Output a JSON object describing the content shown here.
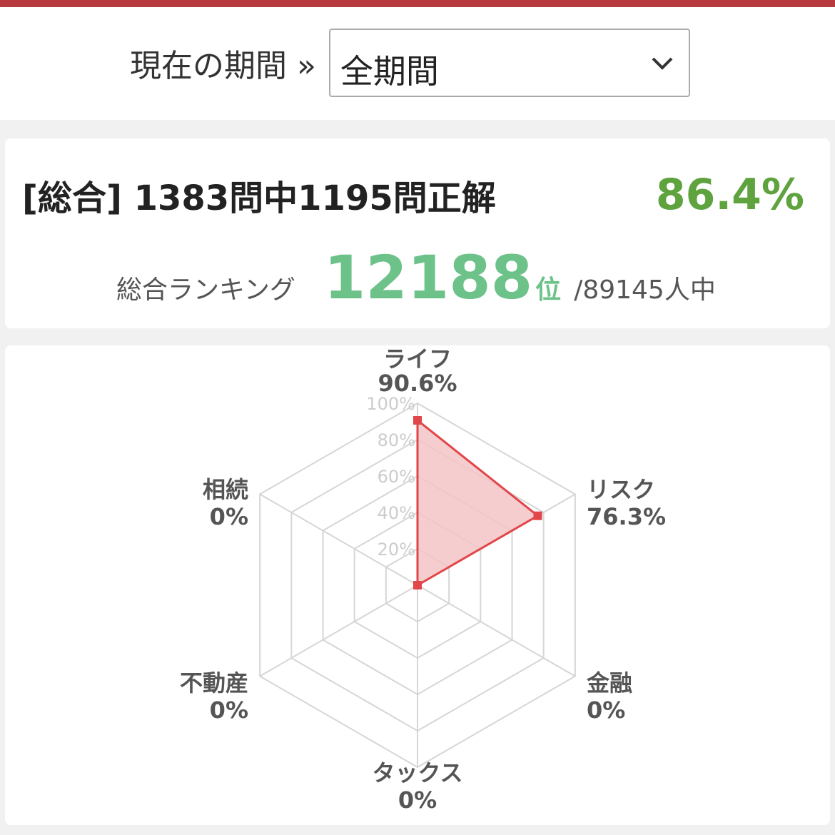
{
  "colors": {
    "topbar": "#b83a3f",
    "score": "#5fa33f",
    "rank": "#6dc28a",
    "series_line": "#e0464a",
    "series_fill": "#f4c4c5",
    "grid": "#d6d6d6",
    "tick": "#cccccc",
    "label": "#555555"
  },
  "period": {
    "label": "現在の期間 »",
    "selected": "全期間",
    "icon": "chevron-down-icon"
  },
  "summary": {
    "title": "[総合] 1383問中1195問正解",
    "percent": "86.4%",
    "rank_label": "総合ランキング",
    "rank": "12188",
    "rank_unit": "位",
    "rank_total": "/89145人中"
  },
  "chart_data": {
    "type": "radar",
    "categories": [
      "ライフ",
      "リスク",
      "金融",
      "タックス",
      "不動産",
      "相続"
    ],
    "values": [
      90.6,
      76.3,
      0,
      0,
      0,
      0
    ],
    "value_labels": [
      "90.6%",
      "76.3%",
      "0%",
      "0%",
      "0%",
      "0%"
    ],
    "rlim": [
      0,
      100
    ],
    "ticks": [
      "20%",
      "40%",
      "60%",
      "80%",
      "100%"
    ],
    "tick_values": [
      20,
      40,
      60,
      80,
      100
    ],
    "grid": true
  }
}
